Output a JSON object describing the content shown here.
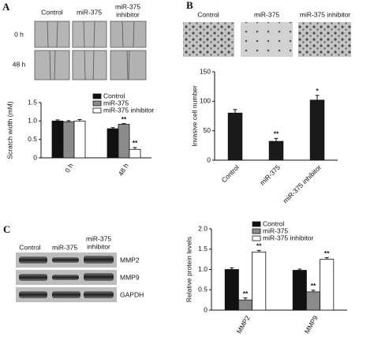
{
  "panel_labels": [
    "A",
    "B",
    "C"
  ],
  "scratch_images": {
    "columns": [
      "Control",
      "miR-375",
      [
        "miR-375",
        "inhibitor"
      ]
    ],
    "rows": [
      "0 h",
      "48 h"
    ]
  },
  "invasion_images": {
    "columns": [
      "Control",
      "miR-375",
      "miR-375 inhibitor"
    ]
  },
  "western_blot": {
    "columns": [
      "Control",
      "miR-375",
      [
        "miR-375",
        "inhibitor"
      ]
    ],
    "bands": [
      "MMP2",
      "MMP9",
      "GAPDH"
    ]
  },
  "chart_data": [
    {
      "type": "bar",
      "ylabel": "Scratch width (mM)",
      "categories": [
        "0 h",
        "48 h"
      ],
      "series": [
        {
          "name": "Control",
          "color": "#111111",
          "values": [
            1.0,
            0.79
          ],
          "errors": [
            0.03,
            0.03
          ],
          "marks": [
            null,
            null
          ]
        },
        {
          "name": "miR-375",
          "color": "#8a8a8a",
          "values": [
            0.98,
            0.91
          ],
          "errors": [
            0.03,
            0.02
          ],
          "marks": [
            null,
            "**"
          ]
        },
        {
          "name": "miR-375 inhibitor",
          "color": "#ffffff",
          "values": [
            1.0,
            0.23
          ],
          "errors": [
            0.04,
            0.05
          ],
          "marks": [
            null,
            "**"
          ]
        }
      ],
      "ylim": [
        0,
        1.5
      ],
      "yticks": [
        0,
        0.5,
        {
          "value": 1,
          "label": "1.0"
        },
        1.5
      ],
      "legend": "upper right"
    },
    {
      "type": "bar",
      "ylabel": "Invasive cell number",
      "categories": [
        "Control",
        "miR-375",
        "miR-375 inhibitor"
      ],
      "color": "#1a1a1a",
      "values": [
        80,
        32,
        102
      ],
      "errors": [
        6,
        5,
        8
      ],
      "marks": [
        null,
        "**",
        "*"
      ],
      "ylim": [
        0,
        150
      ],
      "yticks": [
        0,
        50,
        100,
        150
      ]
    },
    {
      "type": "bar",
      "ylabel": "Relative protein levels",
      "categories": [
        "MMP2",
        "MMP9"
      ],
      "series": [
        {
          "name": "Control",
          "color": "#111111",
          "values": [
            1.0,
            0.98
          ],
          "errors": [
            0.04,
            0.03
          ],
          "marks": [
            null,
            null
          ]
        },
        {
          "name": "miR-375",
          "color": "#8a8a8a",
          "values": [
            0.25,
            0.45
          ],
          "errors": [
            0.05,
            0.04
          ],
          "marks": [
            "**",
            "**"
          ]
        },
        {
          "name": "miR-375 inhibitor",
          "color": "#ffffff",
          "values": [
            1.43,
            1.25
          ],
          "errors": [
            0.04,
            0.04
          ],
          "marks": [
            "**",
            "**"
          ]
        }
      ],
      "ylim": [
        0,
        2
      ],
      "yticks": [
        0,
        0.5,
        {
          "value": 1,
          "label": "1.0"
        },
        1.5,
        {
          "value": 2,
          "label": "2.0"
        }
      ],
      "legend": "upper right"
    }
  ]
}
